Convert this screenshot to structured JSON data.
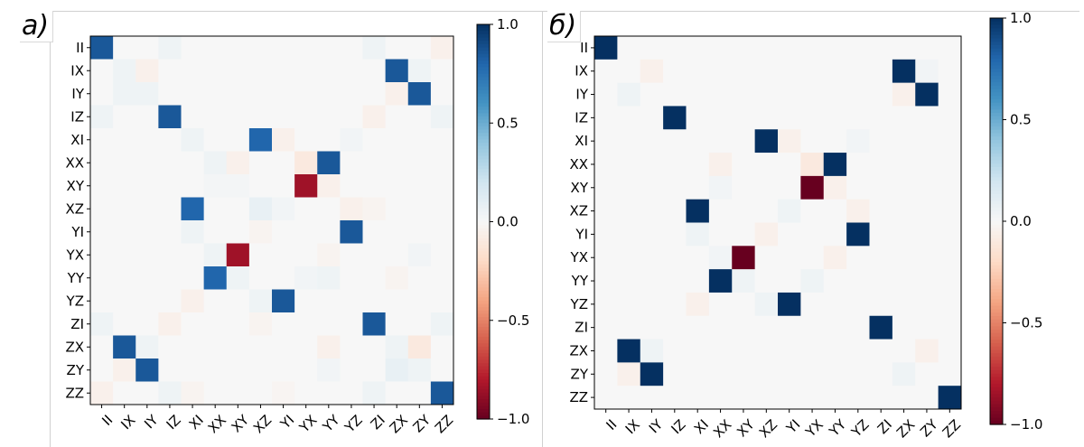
{
  "panels": [
    {
      "label": "а)"
    },
    {
      "label": "б)"
    }
  ],
  "chart_data": [
    {
      "type": "heatmap",
      "title": "",
      "xlabel": "",
      "ylabel": "",
      "x_categories": [
        "II",
        "IX",
        "IY",
        "IZ",
        "XI",
        "XX",
        "XY",
        "XZ",
        "YI",
        "YX",
        "YY",
        "YZ",
        "ZI",
        "ZX",
        "ZY",
        "ZZ"
      ],
      "y_categories": [
        "II",
        "IX",
        "IY",
        "IZ",
        "XI",
        "XX",
        "XY",
        "XZ",
        "YI",
        "YX",
        "YY",
        "YZ",
        "ZI",
        "ZX",
        "ZY",
        "ZZ"
      ],
      "colormap": "RdBu",
      "color_min": -1.0,
      "color_max": 1.0,
      "colorbar_ticks": [
        1.0,
        0.5,
        0.0,
        -0.5,
        -1.0
      ],
      "colorbar_tick_labels": [
        "1.0",
        "0.5",
        "0.0",
        "−0.5",
        "−1.0"
      ],
      "values": [
        [
          0.85,
          0,
          0,
          0.05,
          0,
          0,
          0,
          0,
          0,
          0,
          0,
          0,
          0.05,
          0,
          0,
          -0.05
        ],
        [
          0,
          0.05,
          -0.05,
          0,
          0,
          0,
          0,
          0,
          0,
          0,
          0,
          0,
          0,
          0.85,
          0.05,
          0
        ],
        [
          0,
          0.05,
          0.05,
          0,
          0,
          0,
          0,
          0,
          0,
          0,
          0,
          0,
          0,
          -0.05,
          0.85,
          0
        ],
        [
          0.05,
          0,
          0,
          0.85,
          0,
          0,
          0,
          0,
          0,
          0,
          0,
          0,
          -0.05,
          0,
          0,
          0.05
        ],
        [
          0,
          0,
          0,
          0,
          0.05,
          0,
          0,
          0.8,
          -0.05,
          0,
          0,
          0.03,
          0,
          0,
          0,
          0
        ],
        [
          0,
          0,
          0,
          0,
          0,
          0.05,
          -0.05,
          0,
          0,
          -0.1,
          0.85,
          0,
          0,
          0,
          0,
          0
        ],
        [
          0,
          0,
          0,
          0,
          0,
          0.02,
          0.02,
          0,
          0,
          -0.85,
          -0.05,
          0,
          0,
          0,
          0,
          0
        ],
        [
          0,
          0,
          0,
          0,
          0.8,
          0,
          0,
          0.08,
          0.03,
          0,
          0,
          -0.05,
          -0.03,
          0,
          0,
          0
        ],
        [
          0,
          0,
          0,
          0,
          0.05,
          0,
          0,
          -0.03,
          0,
          0,
          0,
          0.85,
          0,
          0,
          0,
          0
        ],
        [
          0,
          0,
          0,
          0,
          0,
          0.05,
          -0.85,
          0,
          0,
          0,
          -0.03,
          0,
          0,
          0,
          0.03,
          0
        ],
        [
          0,
          0,
          0,
          0,
          0,
          0.8,
          0.05,
          0,
          0,
          0.03,
          0.05,
          0,
          0,
          -0.03,
          0,
          0
        ],
        [
          0,
          0,
          0,
          0,
          -0.05,
          0,
          0,
          0.05,
          0.85,
          0,
          0,
          0,
          0,
          0,
          0,
          0
        ],
        [
          0.05,
          0,
          0,
          -0.05,
          0,
          0,
          0,
          -0.03,
          0,
          0,
          0,
          0,
          0.85,
          0,
          0,
          0.05
        ],
        [
          0,
          0.85,
          0.05,
          0,
          0,
          0,
          0,
          0,
          0,
          0,
          -0.05,
          0,
          0,
          0.05,
          -0.1,
          0
        ],
        [
          0,
          -0.05,
          0.85,
          0,
          0,
          0,
          0,
          0,
          0,
          0,
          0.03,
          0,
          0,
          0.08,
          0.05,
          0
        ],
        [
          -0.05,
          0,
          0,
          0.05,
          -0.03,
          0,
          0,
          0,
          -0.02,
          0,
          0,
          0,
          0.05,
          0,
          0,
          0.85
        ]
      ]
    },
    {
      "type": "heatmap",
      "title": "",
      "xlabel": "",
      "ylabel": "",
      "x_categories": [
        "II",
        "IX",
        "IY",
        "IZ",
        "XI",
        "XX",
        "XY",
        "XZ",
        "YI",
        "YX",
        "YY",
        "YZ",
        "ZI",
        "ZX",
        "ZY",
        "ZZ"
      ],
      "y_categories": [
        "II",
        "IX",
        "IY",
        "IZ",
        "XI",
        "XX",
        "XY",
        "XZ",
        "YI",
        "YX",
        "YY",
        "YZ",
        "ZI",
        "ZX",
        "ZY",
        "ZZ"
      ],
      "colormap": "RdBu",
      "color_min": -1.0,
      "color_max": 1.0,
      "colorbar_ticks": [
        1.0,
        0.5,
        0.0,
        -0.5,
        -1.0
      ],
      "colorbar_tick_labels": [
        "1.0",
        "0.5",
        "0.0",
        "−0.5",
        "−1.0"
      ],
      "values": [
        [
          1,
          0,
          0,
          0,
          0,
          0,
          0,
          0,
          0,
          0,
          0,
          0,
          0,
          0,
          0,
          0
        ],
        [
          0,
          0,
          -0.05,
          0,
          0,
          0,
          0,
          0,
          0,
          0,
          0,
          0,
          0,
          1,
          0.03,
          0
        ],
        [
          0,
          0.05,
          0,
          0,
          0,
          0,
          0,
          0,
          0,
          0,
          0,
          0,
          0,
          -0.05,
          1,
          0
        ],
        [
          0,
          0,
          0,
          1,
          0,
          0,
          0,
          0,
          0,
          0,
          0,
          0,
          0,
          0,
          0,
          0
        ],
        [
          0,
          0,
          0,
          0,
          0,
          0,
          0,
          1,
          -0.05,
          0,
          0,
          0.03,
          0,
          0,
          0,
          0
        ],
        [
          0,
          0,
          0,
          0,
          0,
          -0.05,
          0,
          0,
          0,
          -0.1,
          1,
          0,
          0,
          0,
          0,
          0
        ],
        [
          0,
          0,
          0,
          0,
          0,
          0.03,
          0,
          0,
          0,
          -1,
          -0.05,
          0,
          0,
          0,
          0,
          0
        ],
        [
          0,
          0,
          0,
          0,
          1,
          0,
          0,
          0,
          0.05,
          0,
          0,
          -0.05,
          0,
          0,
          0,
          0
        ],
        [
          0,
          0,
          0,
          0,
          0.05,
          0,
          0,
          -0.05,
          0,
          0,
          0,
          1,
          0,
          0,
          0,
          0
        ],
        [
          0,
          0,
          0,
          0,
          0,
          0.03,
          -1,
          0,
          0,
          0,
          -0.05,
          0,
          0,
          0,
          0,
          0
        ],
        [
          0,
          0,
          0,
          0,
          0,
          1,
          0.05,
          0,
          0,
          0.05,
          0,
          0,
          0,
          0,
          0,
          0
        ],
        [
          0,
          0,
          0,
          0,
          -0.05,
          0,
          0,
          0.05,
          1,
          0,
          0,
          0,
          0,
          0,
          0,
          0
        ],
        [
          0,
          0,
          0,
          0,
          0,
          0,
          0,
          0,
          0,
          0,
          0,
          0,
          1,
          0,
          0,
          0
        ],
        [
          0,
          1,
          0.05,
          0,
          0,
          0,
          0,
          0,
          0,
          0,
          0,
          0,
          0,
          0,
          -0.05,
          0
        ],
        [
          0,
          -0.05,
          1,
          0,
          0,
          0,
          0,
          0,
          0,
          0,
          0,
          0,
          0,
          0.05,
          0,
          0
        ],
        [
          0,
          0,
          0,
          0,
          0,
          0,
          0,
          0,
          0,
          0,
          0,
          0,
          0,
          0,
          0,
          1
        ]
      ]
    }
  ]
}
